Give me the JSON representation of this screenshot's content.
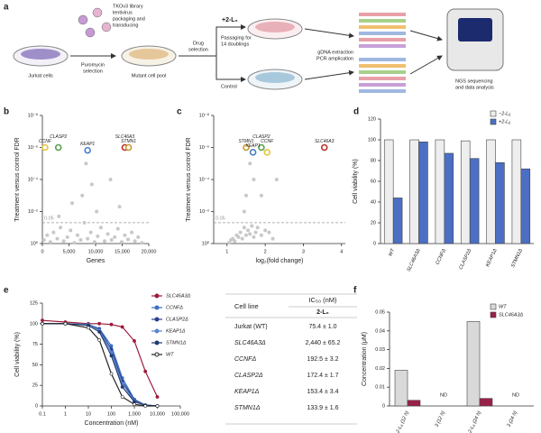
{
  "panel_labels": [
    "a",
    "b",
    "c",
    "d",
    "e",
    "f"
  ],
  "diagram": {
    "library": [
      "TKOv3 library",
      "lentivirus",
      "packaging and",
      "transducing"
    ],
    "jurkat": "Jurkat cells",
    "puromycin": [
      "Puromycin",
      "selection"
    ],
    "mutant": "Mutant cell pool",
    "drug": [
      "Drug",
      "selection"
    ],
    "treatment": "+2-L₆",
    "passaging": [
      "Passaging for",
      "14 doublings"
    ],
    "control": "Control",
    "extraction": [
      "gDNA extraction",
      "PCR amplication"
    ],
    "ngs": [
      "NGS sequencing",
      "and data analysis"
    ]
  },
  "chart_data": [
    {
      "type": "scatter",
      "xlabel": "Genes",
      "ylabel": "Treatment versus control FDR",
      "xlim": [
        0,
        20000
      ],
      "xticks": [
        0,
        {
          "value": 5000,
          "label": "5,000"
        },
        {
          "value": 10000,
          "label": "10,000"
        },
        {
          "value": 15000,
          "label": "15,000"
        },
        {
          "value": 20000,
          "label": "20,000"
        }
      ],
      "ylim": [
        1,
        1e-08
      ],
      "ylog": true,
      "yticks": [
        {
          "value": 1e-08,
          "label": "10⁻⁸"
        },
        {
          "value": 1e-06,
          "label": "10⁻⁶"
        },
        {
          "value": 0.0001,
          "label": "10⁻⁴"
        },
        {
          "value": 0.01,
          "label": "10⁻²"
        },
        {
          "value": 1,
          "label": "10⁰"
        }
      ],
      "threshold": 0.05,
      "series": [
        {
          "color": "#c8c8c8",
          "x": [
            300,
            900,
            1500,
            2100,
            2800,
            3400,
            4000,
            4700,
            5300,
            6000,
            6600,
            7200,
            7900,
            8500,
            9100,
            9800,
            10400,
            11000,
            11700,
            12300,
            13000,
            13600,
            14200,
            14900,
            15500,
            16100,
            16800,
            17400,
            18000,
            18700,
            7500,
            8200,
            12800,
            5600,
            10200,
            3100,
            14500,
            9300
          ],
          "values": [
            0.6,
            0.3,
            0.8,
            0.2,
            0.5,
            0.1,
            0.7,
            0.4,
            0.15,
            0.9,
            0.3,
            0.6,
            0.05,
            0.5,
            0.2,
            0.8,
            0.35,
            0.1,
            0.7,
            0.25,
            0.6,
            0.4,
            0.12,
            0.8,
            0.3,
            0.55,
            0.2,
            0.7,
            0.4,
            0.9,
            0.001,
            1e-05,
            0.0001,
            0.003,
            0.01,
            0.02,
            0.005,
            0.0002
          ]
        }
      ],
      "highlights": [
        {
          "label": "CCNF",
          "x": 500,
          "y": 1e-06,
          "color": "#e8c440"
        },
        {
          "label": "CLASP2",
          "x": 3000,
          "y": 1e-06,
          "color": "#5aa04a"
        },
        {
          "label": "KEAP1",
          "x": 8500,
          "y": 1.5e-06,
          "color": "#4a7fc8"
        },
        {
          "label": "SLC46A3",
          "x": 15500,
          "y": 1e-06,
          "color": "#c0302a"
        },
        {
          "label": "STMN1",
          "x": 16200,
          "y": 1e-06,
          "color": "#c89a30"
        }
      ]
    },
    {
      "type": "scatter",
      "xlabel": "log₂(fold change)",
      "ylabel": "Treatment versus control FDR",
      "xlim": [
        0.65,
        4.1
      ],
      "xticks": [
        1,
        2,
        3,
        4
      ],
      "ylim": [
        1,
        1e-08
      ],
      "ylog": true,
      "yticks": [
        {
          "value": 1e-08,
          "label": "10⁻⁸"
        },
        {
          "value": 1e-06,
          "label": "10⁻⁶"
        },
        {
          "value": 0.0001,
          "label": "10⁻⁴"
        },
        {
          "value": 0.01,
          "label": "10⁻²"
        },
        {
          "value": 1,
          "label": "10⁰"
        }
      ],
      "threshold": 0.05,
      "series": [
        {
          "color": "#c8c8c8",
          "x": [
            1.05,
            1.1,
            1.15,
            1.2,
            1.25,
            1.3,
            1.35,
            1.4,
            1.45,
            1.5,
            1.55,
            1.6,
            1.65,
            1.7,
            1.75,
            1.8,
            1.9,
            2.0,
            2.1,
            2.2,
            1.5,
            1.6,
            1.7,
            1.9,
            2.3,
            1.45
          ],
          "values": [
            0.9,
            0.6,
            0.5,
            0.7,
            0.3,
            0.4,
            0.2,
            0.5,
            0.1,
            0.3,
            0.15,
            0.25,
            0.08,
            0.4,
            0.2,
            0.1,
            0.3,
            0.15,
            0.2,
            0.5,
            0.001,
            1e-05,
            0.0001,
            0.001,
            0.0001,
            0.01
          ]
        }
      ],
      "highlights": [
        {
          "label": "STMN1",
          "x": 1.5,
          "y": 1e-06,
          "color": "#c89a30"
        },
        {
          "label": "CLASP2",
          "x": 1.9,
          "y": 1e-06,
          "color": "#5aa04a"
        },
        {
          "label": "KEAP1",
          "x": 1.68,
          "y": 2e-06,
          "color": "#4a7fc8"
        },
        {
          "label": "CCNF",
          "x": 2.05,
          "y": 2e-06,
          "color": "#e8c440"
        },
        {
          "label": "SLC46A3",
          "x": 3.55,
          "y": 1e-06,
          "color": "#c0302a"
        }
      ]
    },
    {
      "type": "bar",
      "ylabel": "Cell viability (%)",
      "categories": [
        "WT",
        "SLC46A3Δ",
        "CCNFΔ",
        "CLASP2Δ",
        "KEAP1Δ",
        "STMN1Δ"
      ],
      "ylim": [
        0,
        120
      ],
      "yticks": [
        0,
        20,
        40,
        60,
        80,
        100,
        120
      ],
      "legend": "top-right",
      "series": [
        {
          "name": "−2-L₆",
          "color": "#eeeeee",
          "values": [
            100,
            100,
            100,
            99,
            100,
            100
          ]
        },
        {
          "name": "+2-L₆",
          "color": "#4b6fc4",
          "values": [
            44,
            98,
            87,
            82,
            78,
            72
          ]
        }
      ]
    },
    {
      "type": "line",
      "xlabel": "Concentration (nM)",
      "ylabel": "Cell viability (%)",
      "x": [
        0.1,
        1,
        10,
        30,
        100,
        300,
        1000,
        3000,
        10000
      ],
      "xlog": true,
      "xlim": [
        0.1,
        100000
      ],
      "xticks": [
        0.1,
        1,
        10,
        100,
        {
          "value": 1000,
          "label": "1,000"
        },
        {
          "value": 10000,
          "label": "10,000"
        },
        {
          "value": 100000,
          "label": "100,000"
        }
      ],
      "ylim": [
        0,
        125
      ],
      "yticks": [
        0,
        25,
        50,
        75,
        100,
        125
      ],
      "legend": "right",
      "series": [
        {
          "name": "SLC46A3Δ",
          "color": "#9b1b3a",
          "values": [
            104,
            102,
            100,
            100,
            99,
            96,
            79,
            42,
            11
          ]
        },
        {
          "name": "CCNFΔ",
          "color": "#3a6fc4",
          "values": [
            100,
            100,
            99,
            94,
            73,
            34,
            8,
            1,
            0
          ]
        },
        {
          "name": "CLASP2Δ",
          "color": "#2a3f8f",
          "values": [
            100,
            100,
            99,
            93,
            69,
            30,
            7,
            1,
            0
          ]
        },
        {
          "name": "KEAP1Δ",
          "color": "#5a86d0",
          "values": [
            100,
            100,
            99,
            92,
            65,
            27,
            6,
            1,
            0
          ]
        },
        {
          "name": "STMN1Δ",
          "color": "#1f3a6e",
          "values": [
            100,
            100,
            98,
            90,
            61,
            23,
            5,
            1,
            0
          ]
        },
        {
          "name": "WT",
          "color": "#222222",
          "values": [
            100,
            100,
            95,
            80,
            39,
            11,
            2,
            0,
            0
          ]
        }
      ]
    },
    {
      "type": "bar",
      "ylabel": "Concentration (μM)",
      "categories": [
        "2-L₆ (12 h)",
        "3 (12 h)",
        "2-L₆ (24 h)",
        "3 (24 h)"
      ],
      "ylim": [
        0,
        0.05
      ],
      "yticks": [
        0,
        0.01,
        0.02,
        0.03,
        0.04,
        0.05
      ],
      "legend": "top-right",
      "series": [
        {
          "name": "WT",
          "color": "#d9d9d9",
          "values": [
            0.019,
            null,
            0.045,
            null
          ],
          "value_labels": [
            null,
            "ND",
            null,
            "ND"
          ]
        },
        {
          "name": "SLC46A3Δ",
          "color": "#9b2048",
          "values": [
            0.003,
            null,
            0.004,
            null
          ]
        }
      ]
    }
  ],
  "table": {
    "header": [
      "Cell line",
      "IC₅₀ (nM)"
    ],
    "subheader": "2-L₆",
    "rows": [
      [
        "Jurkat (WT)",
        "75.4 ± 1.0"
      ],
      [
        "SLC46A3Δ",
        "2,440 ± 65.2"
      ],
      [
        "CCNFΔ",
        "192.5 ± 3.2"
      ],
      [
        "CLASP2Δ",
        "172.4 ± 1.7"
      ],
      [
        "KEAP1Δ",
        "153.4 ± 3.4"
      ],
      [
        "STMN1Δ",
        "133.9 ± 1.6"
      ]
    ]
  }
}
